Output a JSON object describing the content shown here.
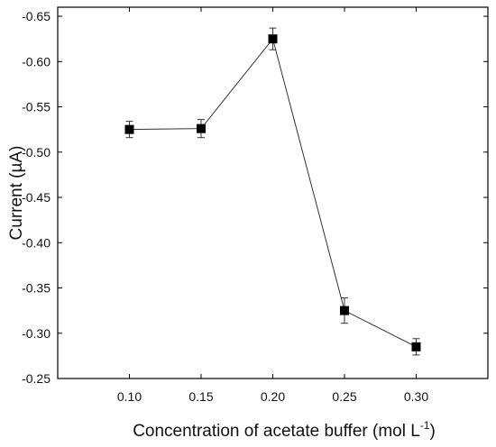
{
  "chart_data": {
    "type": "line",
    "xlabel": "Concentration of acetate buffer (mol L",
    "xlabel_unit_sup": "-1",
    "xlabel_close": ")",
    "ylabel": "Current (µA)",
    "x": [
      0.1,
      0.15,
      0.2,
      0.25,
      0.3
    ],
    "y": [
      -0.525,
      -0.526,
      -0.625,
      -0.325,
      -0.285
    ],
    "error": [
      0.009,
      0.01,
      0.012,
      0.014,
      0.009
    ],
    "xlim": [
      0.05,
      0.35
    ],
    "ylim": [
      -0.25,
      -0.66
    ],
    "y_axis_reversed": true,
    "xticks": [
      "0.10",
      "0.15",
      "0.20",
      "0.25",
      "0.30"
    ],
    "yticks": [
      "-0.65",
      "-0.60",
      "-0.55",
      "-0.50",
      "-0.45",
      "-0.40",
      "-0.35",
      "-0.30",
      "-0.25"
    ],
    "marker": "square",
    "marker_color": "#000000",
    "line_color": "#333333",
    "grid": false,
    "legend": false
  }
}
